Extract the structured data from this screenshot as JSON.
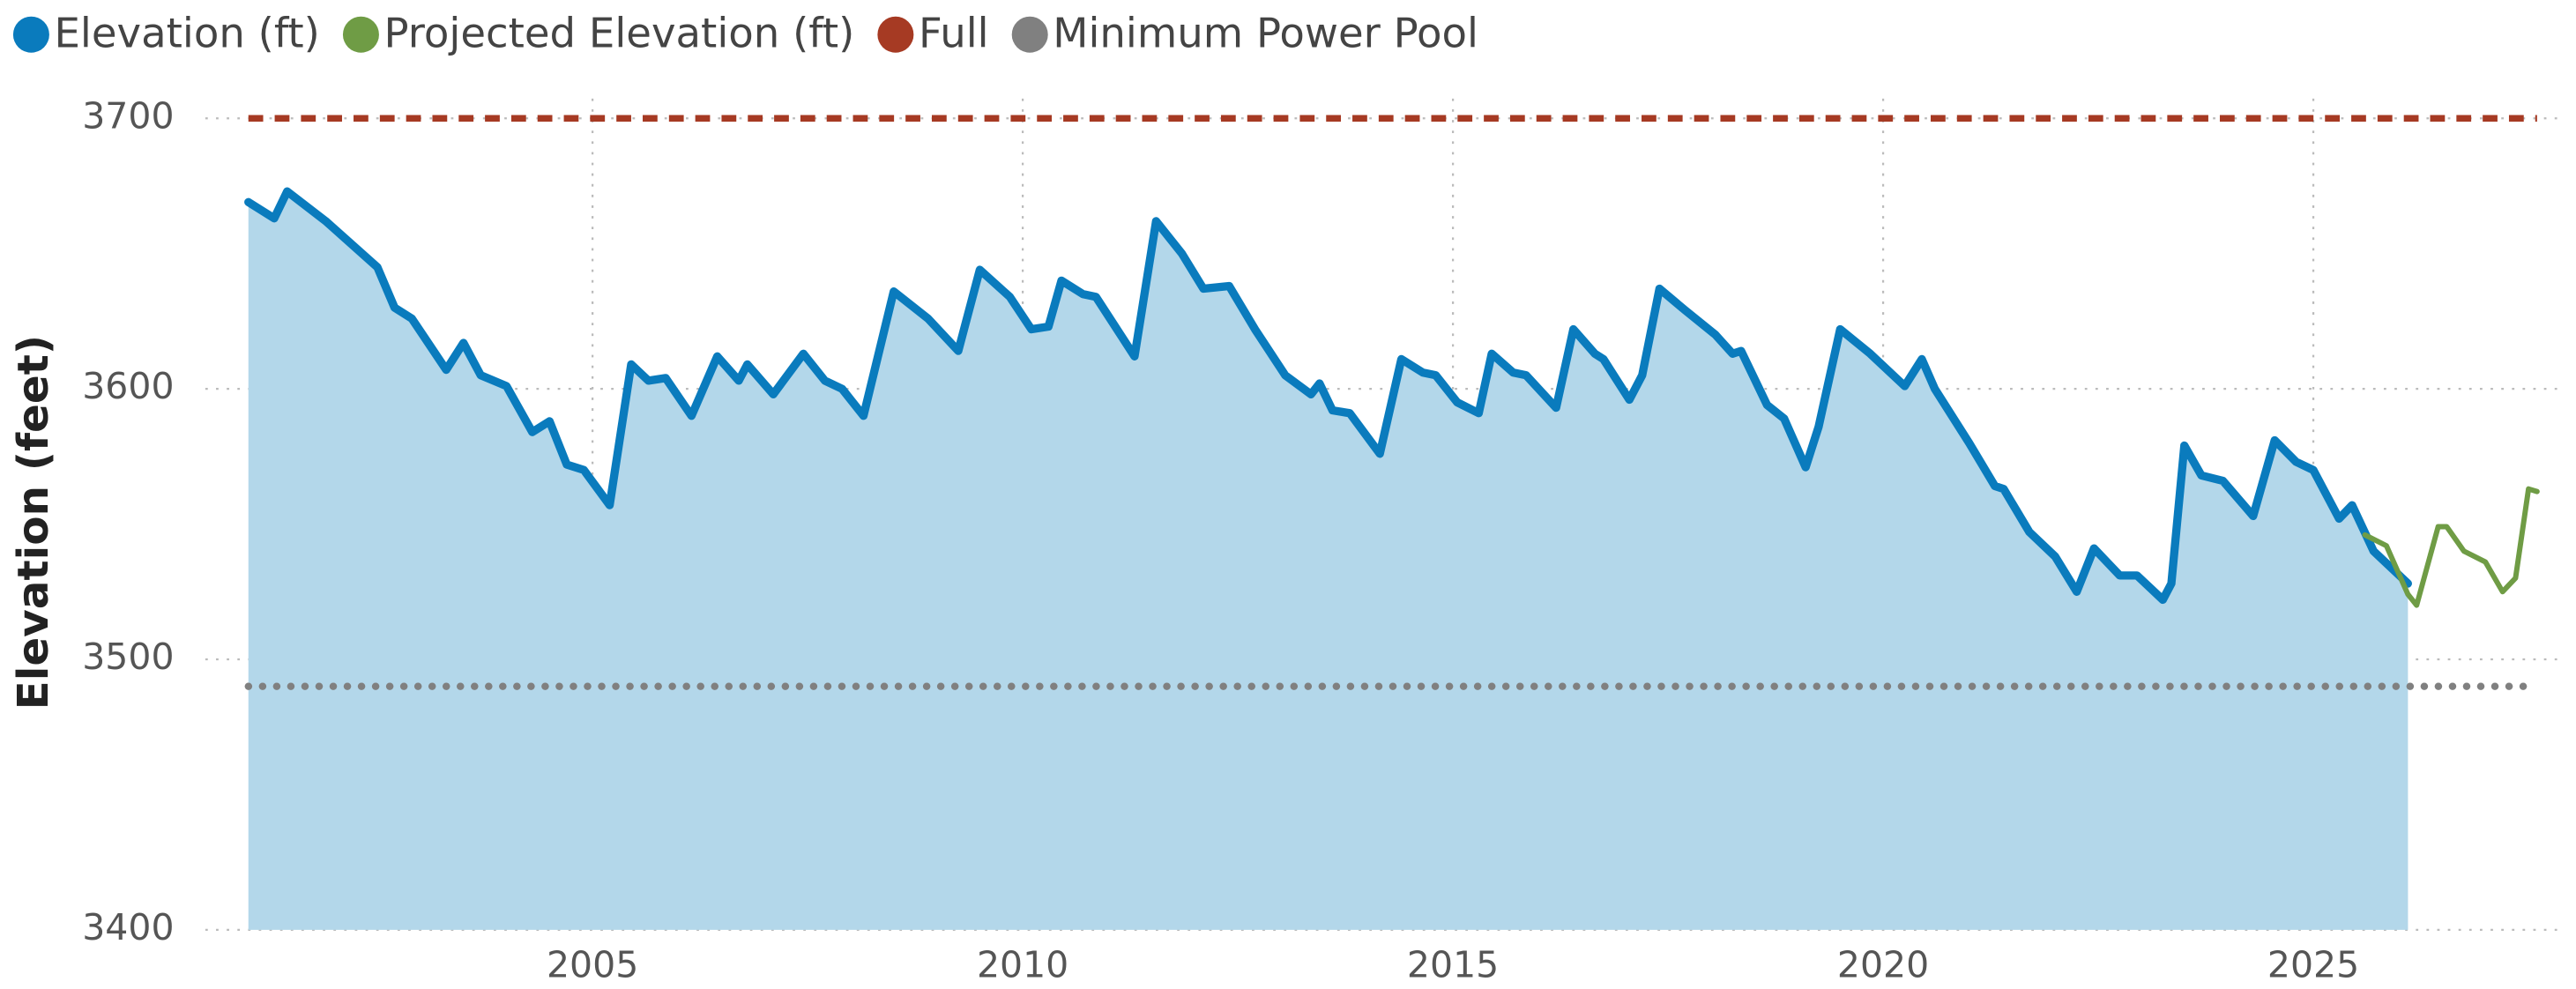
{
  "chart_data": {
    "type": "line",
    "y_label": "Elevation (feet)",
    "xlim": [
      2000.5,
      2027.9
    ],
    "xticks": [
      2005,
      2010,
      2015,
      2020,
      2025
    ],
    "ylim": [
      3400,
      3700
    ],
    "yticks": [
      3400,
      3500,
      3600,
      3700
    ],
    "grid": true,
    "legend": "top-left",
    "series": [
      {
        "name": "Elevation (ft)",
        "color": "#0a7bbd",
        "area": true,
        "area_color": "#b3d7ea",
        "style": "solid",
        "x": [
          2001.0,
          2001.3,
          2001.45,
          2001.9,
          2002.5,
          2002.7,
          2002.9,
          2003.3,
          2003.5,
          2003.7,
          2004.0,
          2004.3,
          2004.5,
          2004.7,
          2004.9,
          2005.2,
          2005.45,
          2005.65,
          2005.85,
          2006.15,
          2006.45,
          2006.7,
          2006.8,
          2007.1,
          2007.45,
          2007.7,
          2007.9,
          2008.15,
          2008.5,
          2008.9,
          2009.25,
          2009.5,
          2009.85,
          2010.1,
          2010.3,
          2010.45,
          2010.7,
          2010.85,
          2011.3,
          2011.55,
          2011.85,
          2012.1,
          2012.4,
          2012.7,
          2013.05,
          2013.35,
          2013.45,
          2013.6,
          2013.8,
          2014.15,
          2014.4,
          2014.65,
          2014.8,
          2015.05,
          2015.3,
          2015.45,
          2015.7,
          2015.85,
          2016.2,
          2016.4,
          2016.65,
          2016.75,
          2017.05,
          2017.2,
          2017.4,
          2017.7,
          2018.05,
          2018.25,
          2018.35,
          2018.65,
          2018.85,
          2019.1,
          2019.25,
          2019.5,
          2019.85,
          2020.25,
          2020.45,
          2020.6,
          2021.0,
          2021.3,
          2021.4,
          2021.7,
          2022.0,
          2022.25,
          2022.45,
          2022.75,
          2022.95,
          2023.25,
          2023.35,
          2023.5,
          2023.7,
          2023.95,
          2024.3,
          2024.55,
          2024.8,
          2025.0,
          2025.3,
          2025.45,
          2025.7,
          2026.1
        ],
        "values": [
          3669,
          3663,
          3673,
          3662,
          3645,
          3630,
          3626,
          3607,
          3617,
          3605,
          3601,
          3584,
          3588,
          3572,
          3570,
          3557,
          3609,
          3603,
          3604,
          3590,
          3612,
          3603,
          3609,
          3598,
          3613,
          3603,
          3600,
          3590,
          3636,
          3626,
          3614,
          3644,
          3634,
          3622,
          3623,
          3640,
          3635,
          3634,
          3612,
          3662,
          3650,
          3637,
          3638,
          3622,
          3605,
          3598,
          3602,
          3592,
          3591,
          3576,
          3611,
          3606,
          3605,
          3595,
          3591,
          3613,
          3606,
          3605,
          3593,
          3622,
          3613,
          3611,
          3596,
          3605,
          3637,
          3629,
          3620,
          3613,
          3614,
          3594,
          3589,
          3571,
          3586,
          3622,
          3613,
          3601,
          3611,
          3600,
          3580,
          3564,
          3563,
          3547,
          3538,
          3525,
          3541,
          3531,
          3531,
          3522,
          3528,
          3579,
          3568,
          3566,
          3553,
          3581,
          3573,
          3570,
          3552,
          3557,
          3540,
          3528
        ]
      },
      {
        "name": "Projected Elevation (ft)",
        "color": "#6f9c45",
        "style": "solid",
        "x": [
          2025.6,
          2025.85,
          2026.1,
          2026.2,
          2026.45,
          2026.55,
          2026.75,
          2027.0,
          2027.2,
          2027.35,
          2027.5,
          2027.6
        ],
        "values": [
          3546,
          3542,
          3524,
          3520,
          3549,
          3549,
          3540,
          3536,
          3525,
          3530,
          3563,
          3562
        ]
      },
      {
        "name": "Full",
        "color": "#a63a23",
        "style": "dashed",
        "x": [
          2001.0,
          2027.6
        ],
        "values": [
          3700,
          3700
        ]
      },
      {
        "name": "Minimum Power Pool",
        "color": "#808080",
        "style": "dotted",
        "x": [
          2001.0,
          2027.6
        ],
        "values": [
          3490,
          3490
        ]
      }
    ]
  }
}
